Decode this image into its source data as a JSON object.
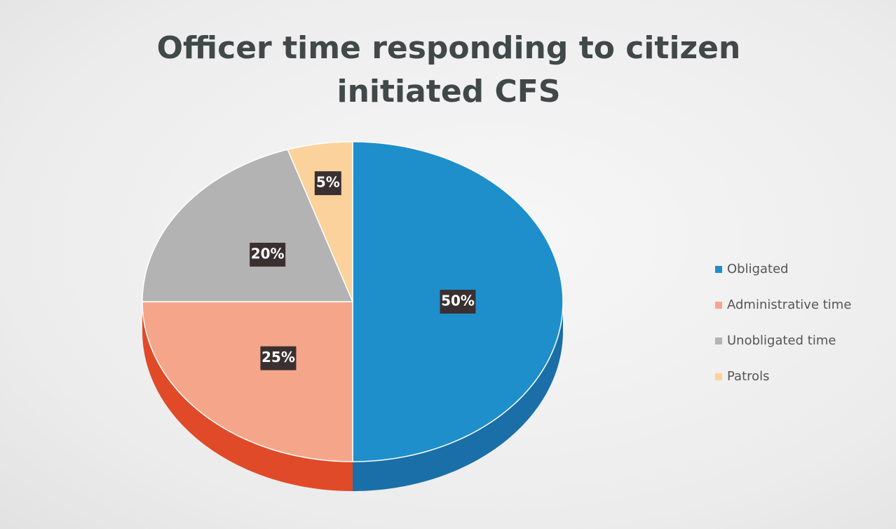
{
  "chart_data": {
    "type": "pie",
    "title": "Officer time responding to citizen initiated CFS",
    "categories": [
      "Obligated",
      "Administrative time",
      "Unobligated time",
      "Patrols"
    ],
    "values": [
      50,
      25,
      20,
      5
    ],
    "value_labels": [
      "50%",
      "25%",
      "20%",
      "5%"
    ],
    "colors": [
      "#1f8fcc",
      "#f5a68a",
      "#b3b3b3",
      "#fbd29c"
    ],
    "side_colors": [
      "#1a6fa8",
      "#e04a28",
      "#8c8c8c",
      "#d9a868"
    ],
    "legend": "right"
  }
}
